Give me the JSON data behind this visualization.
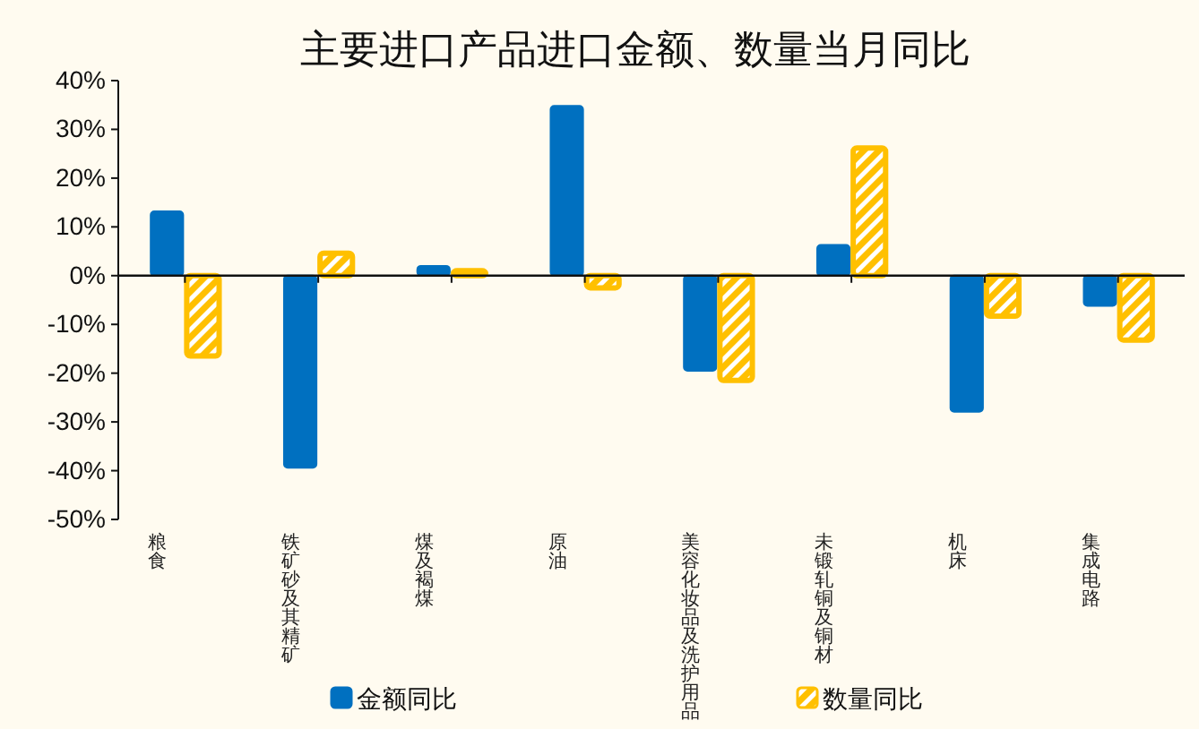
{
  "chart_data": {
    "type": "bar",
    "title": "主要进口产品进口金额、数量当月同比",
    "categories": [
      "粮食",
      "铁矿砂及其精矿",
      "煤及褐煤",
      "原油",
      "美容化妆品及洗护用品",
      "未锻轧铜及铜材",
      "机床",
      "集成电路"
    ],
    "series": [
      {
        "name": "金额同比",
        "color": "#0070c0",
        "values": [
          13.2,
          -39.4,
          2,
          34.8,
          -19.5,
          6.3,
          -27.9,
          -6.2
        ]
      },
      {
        "name": "数量同比",
        "color": "#ffc000",
        "values": [
          -16.5,
          4.6,
          1,
          -2.5,
          -21.5,
          26.2,
          -8.3,
          -13.2
        ]
      }
    ],
    "ylim": [
      -50,
      40
    ],
    "yticks": [
      {
        "value": -50,
        "label": "-50%"
      },
      {
        "value": -40,
        "label": "-40%"
      },
      {
        "value": -30,
        "label": "-30%"
      },
      {
        "value": -20,
        "label": "-20%"
      },
      {
        "value": -10,
        "label": "-10%"
      },
      {
        "value": 0,
        "label": "0%"
      },
      {
        "value": 10,
        "label": "10%"
      },
      {
        "value": 20,
        "label": "20%"
      },
      {
        "value": 30,
        "label": "30%"
      },
      {
        "value": 40,
        "label": "40%"
      }
    ],
    "ref_lines": [
      {
        "axis": "y",
        "value": 0
      }
    ],
    "grid": false,
    "legend": "bottom"
  }
}
